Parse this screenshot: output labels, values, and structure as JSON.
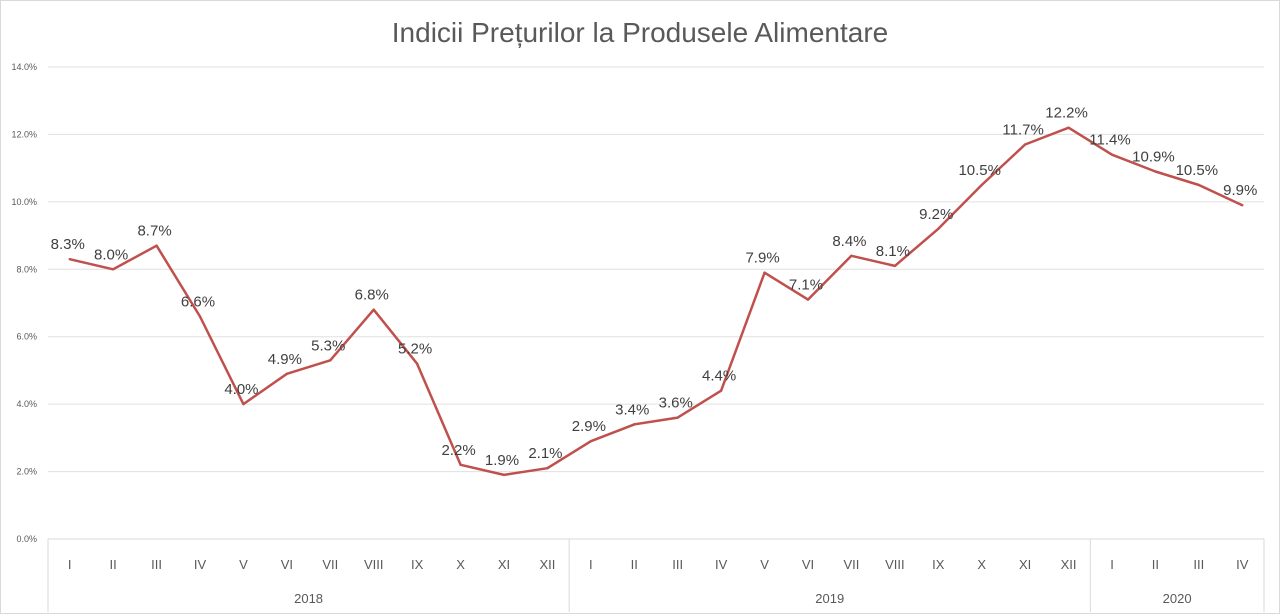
{
  "chart_data": {
    "type": "line",
    "title": "Indicii Prețurilor la Produsele Alimentare",
    "xlabel": "",
    "ylabel": "",
    "ylim": [
      0,
      14
    ],
    "yticks": [
      "0.0%",
      "2.0%",
      "4.0%",
      "6.0%",
      "8.0%",
      "10.0%",
      "12.0%",
      "14.0%"
    ],
    "grid": true,
    "line_color": "#c0504d",
    "groups": [
      {
        "label": "2018",
        "categories": [
          "I",
          "II",
          "III",
          "IV",
          "V",
          "VI",
          "VII",
          "VIII",
          "IX",
          "X",
          "XI",
          "XII"
        ]
      },
      {
        "label": "2019",
        "categories": [
          "I",
          "II",
          "III",
          "IV",
          "V",
          "VI",
          "VII",
          "VIII",
          "IX",
          "X",
          "XI",
          "XII"
        ]
      },
      {
        "label": "2020",
        "categories": [
          "I",
          "II",
          "III",
          "IV"
        ]
      }
    ],
    "series": [
      {
        "name": "Indicii Prețurilor la Produsele Alimentare",
        "values": [
          8.3,
          8.0,
          8.7,
          6.6,
          4.0,
          4.9,
          5.3,
          6.8,
          5.2,
          2.2,
          1.9,
          2.1,
          2.9,
          3.4,
          3.6,
          4.4,
          7.9,
          7.1,
          8.4,
          8.1,
          9.2,
          10.5,
          11.7,
          12.2,
          11.4,
          10.9,
          10.5,
          9.9
        ],
        "labels": [
          "8.3%",
          "8.0%",
          "8.7%",
          "6.6%",
          "4.0%",
          "4.9%",
          "5.3%",
          "6.8%",
          "5.2%",
          "2.2%",
          "1.9%",
          "2.1%",
          "2.9%",
          "3.4%",
          "3.6%",
          "4.4%",
          "7.9%",
          "7.1%",
          "8.4%",
          "8.1%",
          "9.2%",
          "10.5%",
          "11.7%",
          "12.2%",
          "11.4%",
          "10.9%",
          "10.5%",
          "9.9%"
        ]
      }
    ]
  }
}
